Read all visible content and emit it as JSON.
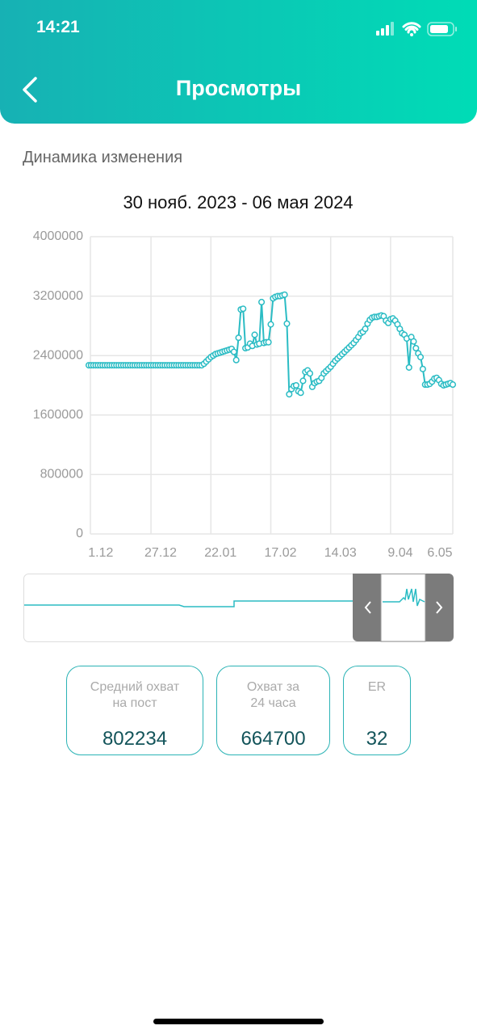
{
  "status_bar": {
    "time": "14:21"
  },
  "header": {
    "title": "Просмотры"
  },
  "section_title": "Динамика изменения",
  "chart_data": {
    "type": "line",
    "title": "30 нояб. 2023 - 06 мая 2024",
    "color": "#2bbcc4",
    "grid": true,
    "ylim": [
      0,
      4000000
    ],
    "yticks": [
      0,
      800000,
      1600000,
      2400000,
      3200000,
      4000000
    ],
    "categories": [
      null,
      "1.12",
      null,
      null,
      null,
      null,
      null,
      null,
      null,
      null,
      null,
      null,
      null,
      null,
      null,
      null,
      null,
      null,
      null,
      null,
      null,
      null,
      null,
      null,
      null,
      null,
      null,
      "27.12",
      null,
      null,
      null,
      null,
      null,
      null,
      null,
      null,
      null,
      null,
      null,
      null,
      null,
      null,
      null,
      null,
      null,
      null,
      null,
      null,
      null,
      null,
      null,
      null,
      null,
      "22.01",
      null,
      null,
      null,
      null,
      null,
      null,
      null,
      null,
      null,
      null,
      null,
      null,
      null,
      null,
      null,
      null,
      null,
      null,
      null,
      null,
      null,
      null,
      null,
      null,
      null,
      "17.02",
      null,
      null,
      null,
      null,
      null,
      null,
      null,
      null,
      null,
      null,
      null,
      null,
      null,
      null,
      null,
      null,
      null,
      null,
      null,
      null,
      null,
      null,
      null,
      null,
      null,
      "14.03",
      null,
      null,
      null,
      null,
      null,
      null,
      null,
      null,
      null,
      null,
      null,
      null,
      null,
      null,
      null,
      null,
      null,
      null,
      null,
      null,
      null,
      null,
      null,
      null,
      null,
      "9.04",
      null,
      null,
      null,
      null,
      null,
      null,
      null,
      null,
      null,
      null,
      null,
      null,
      null,
      null,
      null,
      null,
      null,
      null,
      null,
      null,
      null,
      null,
      null,
      null,
      null,
      null,
      "6.05"
    ],
    "values": [
      2270000,
      2270000,
      2270000,
      2270000,
      2270000,
      2270000,
      2270000,
      2270000,
      2270000,
      2270000,
      2270000,
      2270000,
      2270000,
      2270000,
      2270000,
      2270000,
      2270000,
      2270000,
      2270000,
      2270000,
      2270000,
      2270000,
      2270000,
      2270000,
      2270000,
      2270000,
      2270000,
      2270000,
      2270000,
      2270000,
      2270000,
      2270000,
      2270000,
      2270000,
      2270000,
      2270000,
      2270000,
      2270000,
      2270000,
      2270000,
      2270000,
      2270000,
      2270000,
      2270000,
      2270000,
      2270000,
      2270000,
      2270000,
      2270000,
      2270000,
      2290000,
      2320000,
      2350000,
      2380000,
      2400000,
      2420000,
      2430000,
      2440000,
      2450000,
      2460000,
      2470000,
      2480000,
      2490000,
      2450000,
      2340000,
      2640000,
      3020000,
      3030000,
      2500000,
      2510000,
      2560000,
      2530000,
      2680000,
      2550000,
      2560000,
      3120000,
      2570000,
      2580000,
      2580000,
      2820000,
      3170000,
      3190000,
      3200000,
      3200000,
      3210000,
      3220000,
      2830000,
      1880000,
      1950000,
      1990000,
      2000000,
      1920000,
      1900000,
      2060000,
      2180000,
      2200000,
      2160000,
      1980000,
      2030000,
      2050000,
      2060000,
      2100000,
      2160000,
      2190000,
      2220000,
      2250000,
      2290000,
      2330000,
      2360000,
      2390000,
      2420000,
      2450000,
      2480000,
      2510000,
      2540000,
      2570000,
      2610000,
      2650000,
      2700000,
      2720000,
      2760000,
      2830000,
      2880000,
      2910000,
      2920000,
      2920000,
      2930000,
      2940000,
      2930000,
      2870000,
      2840000,
      2890000,
      2900000,
      2870000,
      2820000,
      2760000,
      2700000,
      2680000,
      2630000,
      2240000,
      2650000,
      2590000,
      2500000,
      2430000,
      2380000,
      2220000,
      2010000,
      2010000,
      2020000,
      2050000,
      2090000,
      2100000,
      2070000,
      2020000,
      2000000,
      2010000,
      2020000,
      2030000,
      2010000
    ]
  },
  "cards": [
    {
      "label": [
        "Средний охват",
        "на пост"
      ],
      "value": 802234
    },
    {
      "label": [
        "Охват за",
        "24 часа"
      ],
      "value": 664700
    },
    {
      "label": [
        "ER"
      ],
      "value": 32
    }
  ]
}
